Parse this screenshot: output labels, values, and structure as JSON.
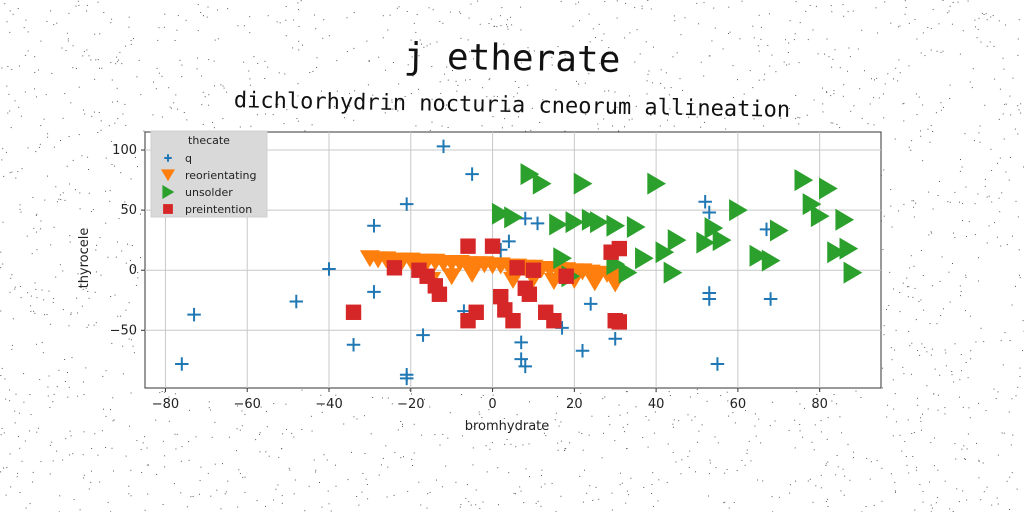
{
  "chart_data": {
    "type": "scatter",
    "title": "j etherate",
    "subtitle": "dichlorhydrin nocturia cneorum allineation",
    "xlabel": "bromhydrate",
    "ylabel": "thyrocele",
    "xlim": [
      -85,
      95
    ],
    "ylim": [
      -98,
      115
    ],
    "xticks": [
      -80,
      -60,
      -40,
      -20,
      0,
      20,
      40,
      60,
      80
    ],
    "yticks": [
      -50,
      0,
      50,
      100
    ],
    "grid": true,
    "legend": {
      "title": "thecate",
      "position": "top-left"
    },
    "series": [
      {
        "name": "q",
        "marker": "plus",
        "color": "#1f77b4",
        "points": [
          [
            -76,
            -78
          ],
          [
            -73,
            -37
          ],
          [
            -48,
            -26
          ],
          [
            -40,
            1
          ],
          [
            -34,
            -62
          ],
          [
            -29,
            37
          ],
          [
            -29,
            -18
          ],
          [
            -21,
            55
          ],
          [
            -21,
            -87
          ],
          [
            -21,
            -90
          ],
          [
            -17,
            -54
          ],
          [
            -12,
            103
          ],
          [
            -5,
            80
          ],
          [
            -7,
            -34
          ],
          [
            2,
            17
          ],
          [
            2,
            6
          ],
          [
            4,
            24
          ],
          [
            7,
            -60
          ],
          [
            7,
            -74
          ],
          [
            8,
            -80
          ],
          [
            8,
            43
          ],
          [
            11,
            39
          ],
          [
            17,
            -48
          ],
          [
            22,
            -67
          ],
          [
            24,
            -28
          ],
          [
            30,
            -57
          ],
          [
            52,
            57
          ],
          [
            53,
            48
          ],
          [
            53,
            -19
          ],
          [
            53,
            -24
          ],
          [
            55,
            -78
          ],
          [
            67,
            34
          ],
          [
            68,
            -24
          ]
        ]
      },
      {
        "name": "reorientating",
        "marker": "triangle-down",
        "color": "#ff7f0e",
        "points": [
          [
            -30,
            10
          ],
          [
            -28,
            9
          ],
          [
            -26,
            9
          ],
          [
            -24,
            8
          ],
          [
            -22,
            8
          ],
          [
            -20,
            8
          ],
          [
            -18,
            7
          ],
          [
            -16,
            7
          ],
          [
            -14,
            7
          ],
          [
            -12,
            6
          ],
          [
            -10,
            6
          ],
          [
            -8,
            6
          ],
          [
            -6,
            5
          ],
          [
            -4,
            5
          ],
          [
            -2,
            5
          ],
          [
            0,
            4
          ],
          [
            2,
            4
          ],
          [
            4,
            3
          ],
          [
            6,
            3
          ],
          [
            8,
            2
          ],
          [
            10,
            2
          ],
          [
            12,
            1
          ],
          [
            14,
            1
          ],
          [
            16,
            0
          ],
          [
            18,
            0
          ],
          [
            20,
            -1
          ],
          [
            22,
            -1
          ],
          [
            24,
            -2
          ],
          [
            26,
            -3
          ],
          [
            28,
            -3
          ],
          [
            30,
            -4
          ],
          [
            -15,
            -8
          ],
          [
            -10,
            -5
          ],
          [
            -5,
            -3
          ],
          [
            5,
            -8
          ],
          [
            10,
            -7
          ],
          [
            15,
            -9
          ],
          [
            20,
            -8
          ],
          [
            25,
            -10
          ],
          [
            30,
            -11
          ]
        ]
      },
      {
        "name": "unsolder",
        "marker": "triangle-right",
        "color": "#2ca02c",
        "points": [
          [
            9,
            80
          ],
          [
            12,
            72
          ],
          [
            22,
            72
          ],
          [
            40,
            72
          ],
          [
            76,
            75
          ],
          [
            82,
            68
          ],
          [
            78,
            55
          ],
          [
            80,
            45
          ],
          [
            86,
            42
          ],
          [
            2,
            47
          ],
          [
            5,
            44
          ],
          [
            16,
            38
          ],
          [
            20,
            40
          ],
          [
            24,
            42
          ],
          [
            26,
            40
          ],
          [
            30,
            37
          ],
          [
            35,
            36
          ],
          [
            54,
            35
          ],
          [
            60,
            50
          ],
          [
            45,
            25
          ],
          [
            42,
            15
          ],
          [
            37,
            10
          ],
          [
            30,
            5
          ],
          [
            33,
            -2
          ],
          [
            44,
            -2
          ],
          [
            56,
            25
          ],
          [
            65,
            12
          ],
          [
            68,
            8
          ],
          [
            70,
            33
          ],
          [
            84,
            15
          ],
          [
            87,
            18
          ],
          [
            88,
            -2
          ],
          [
            17,
            10
          ],
          [
            19,
            -5
          ],
          [
            52,
            23
          ]
        ]
      },
      {
        "name": "preintention",
        "marker": "square",
        "color": "#d62728",
        "points": [
          [
            -34,
            -35
          ],
          [
            -24,
            2
          ],
          [
            -18,
            0
          ],
          [
            -16,
            -5
          ],
          [
            -14,
            -13
          ],
          [
            -13,
            -20
          ],
          [
            -6,
            20
          ],
          [
            -6,
            -42
          ],
          [
            -4,
            -35
          ],
          [
            0,
            20
          ],
          [
            2,
            -22
          ],
          [
            3,
            -33
          ],
          [
            5,
            -42
          ],
          [
            6,
            2
          ],
          [
            8,
            -15
          ],
          [
            9,
            -20
          ],
          [
            10,
            0
          ],
          [
            13,
            -35
          ],
          [
            15,
            -42
          ],
          [
            18,
            -5
          ],
          [
            29,
            15
          ],
          [
            31,
            18
          ],
          [
            30,
            -42
          ],
          [
            31,
            -43
          ]
        ]
      }
    ]
  }
}
